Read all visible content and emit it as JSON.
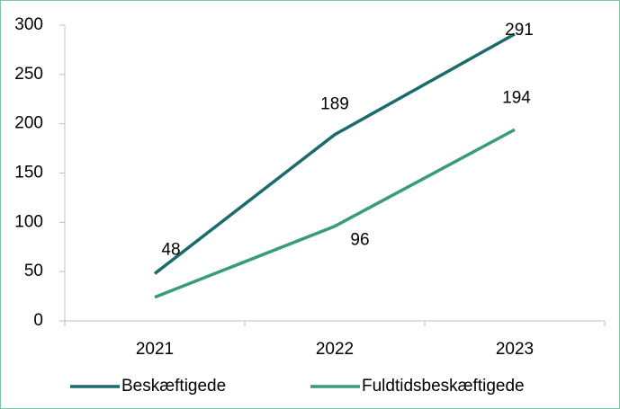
{
  "chart_data": {
    "type": "line",
    "categories": [
      "2021",
      "2022",
      "2023"
    ],
    "series": [
      {
        "name": "Beskæftigede",
        "color": "#1b6b6a",
        "values": [
          48,
          189,
          291
        ],
        "labeled": [
          true,
          true,
          true
        ]
      },
      {
        "name": "Fuldtidsbeskæftigede",
        "color": "#3a9a7c",
        "values": [
          24,
          96,
          194
        ],
        "labeled": [
          false,
          true,
          true
        ]
      }
    ],
    "ylim": [
      0,
      300
    ],
    "yticks": [
      0,
      50,
      100,
      150,
      200,
      250,
      300
    ],
    "grid": false,
    "legend": "bottom"
  }
}
